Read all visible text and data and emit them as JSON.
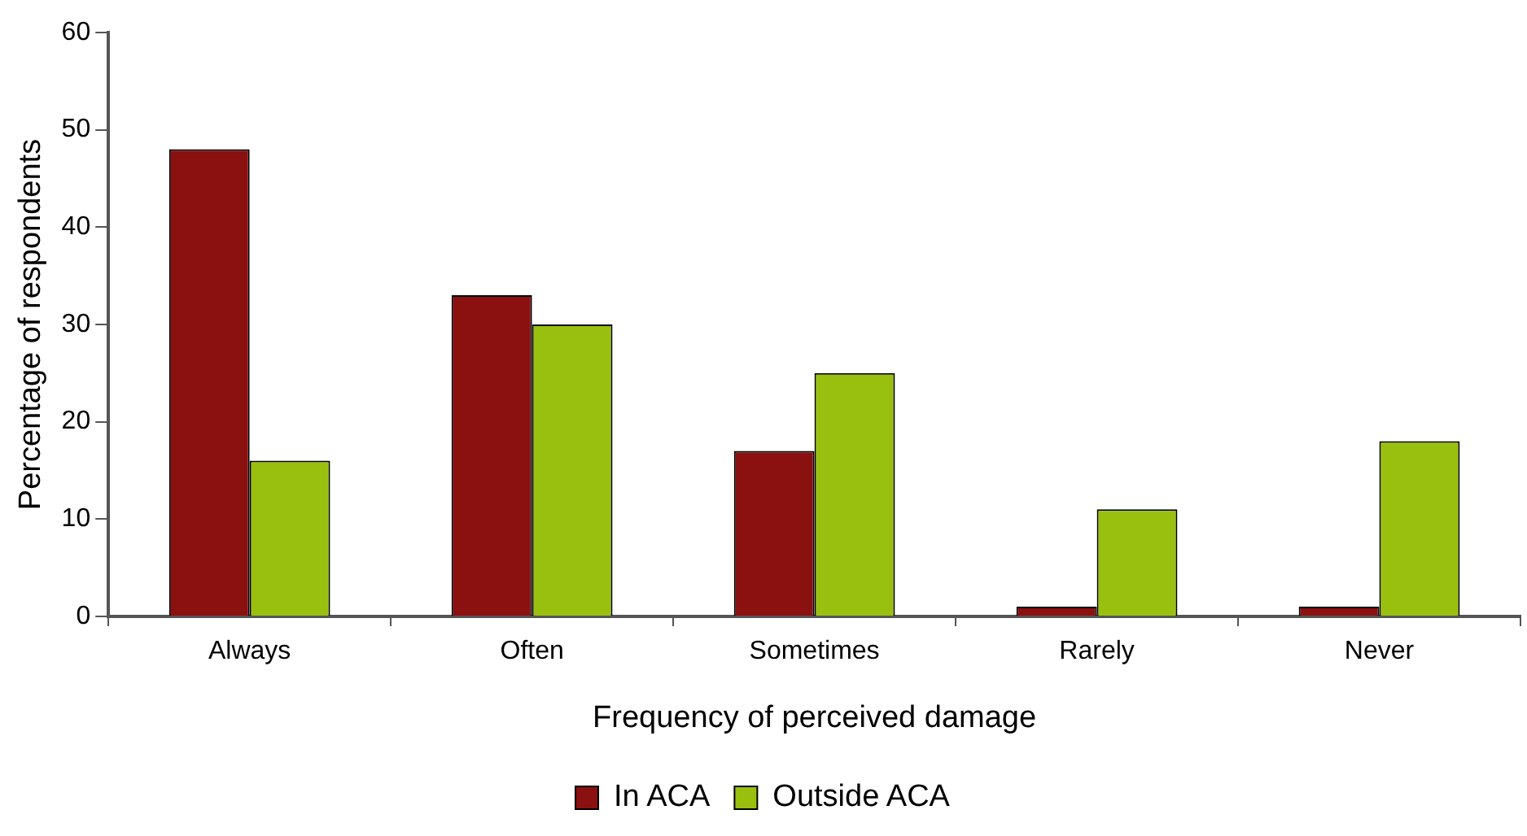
{
  "chart_data": {
    "type": "bar",
    "xlabel": "Frequency of perceived damage",
    "ylabel": "Percentage of respondents",
    "categories": [
      "Always",
      "Often",
      "Sometimes",
      "Rarely",
      "Never"
    ],
    "series": [
      {
        "name": "In ACA",
        "color": "#8b1010",
        "values": [
          48,
          33,
          17,
          1,
          1
        ]
      },
      {
        "name": "Outside ACA",
        "color": "#99c00e",
        "values": [
          16,
          30,
          25,
          11,
          18
        ]
      }
    ],
    "ylim": [
      0,
      60
    ],
    "yticks": [
      0,
      10,
      20,
      30,
      40,
      50,
      60
    ],
    "grid": false,
    "legend": "bottom"
  }
}
